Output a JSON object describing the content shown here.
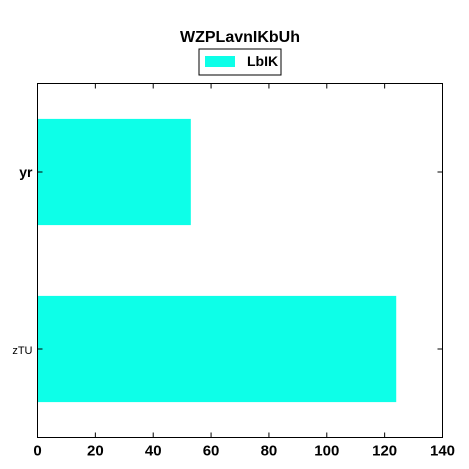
{
  "chart_data": {
    "type": "bar",
    "orientation": "horizontal",
    "title": "WZPLavnIKbUh",
    "xlabel": "",
    "ylabel": "",
    "categories": [
      "zTU",
      "yr"
    ],
    "series": [
      {
        "name": "LbIK",
        "values": [
          124,
          53
        ],
        "color": "#0dffe8"
      }
    ],
    "xlim": [
      0,
      140
    ],
    "xticks": [
      0,
      20,
      40,
      60,
      80,
      100,
      120,
      140
    ],
    "grid": false,
    "legend_position": "top-center"
  }
}
